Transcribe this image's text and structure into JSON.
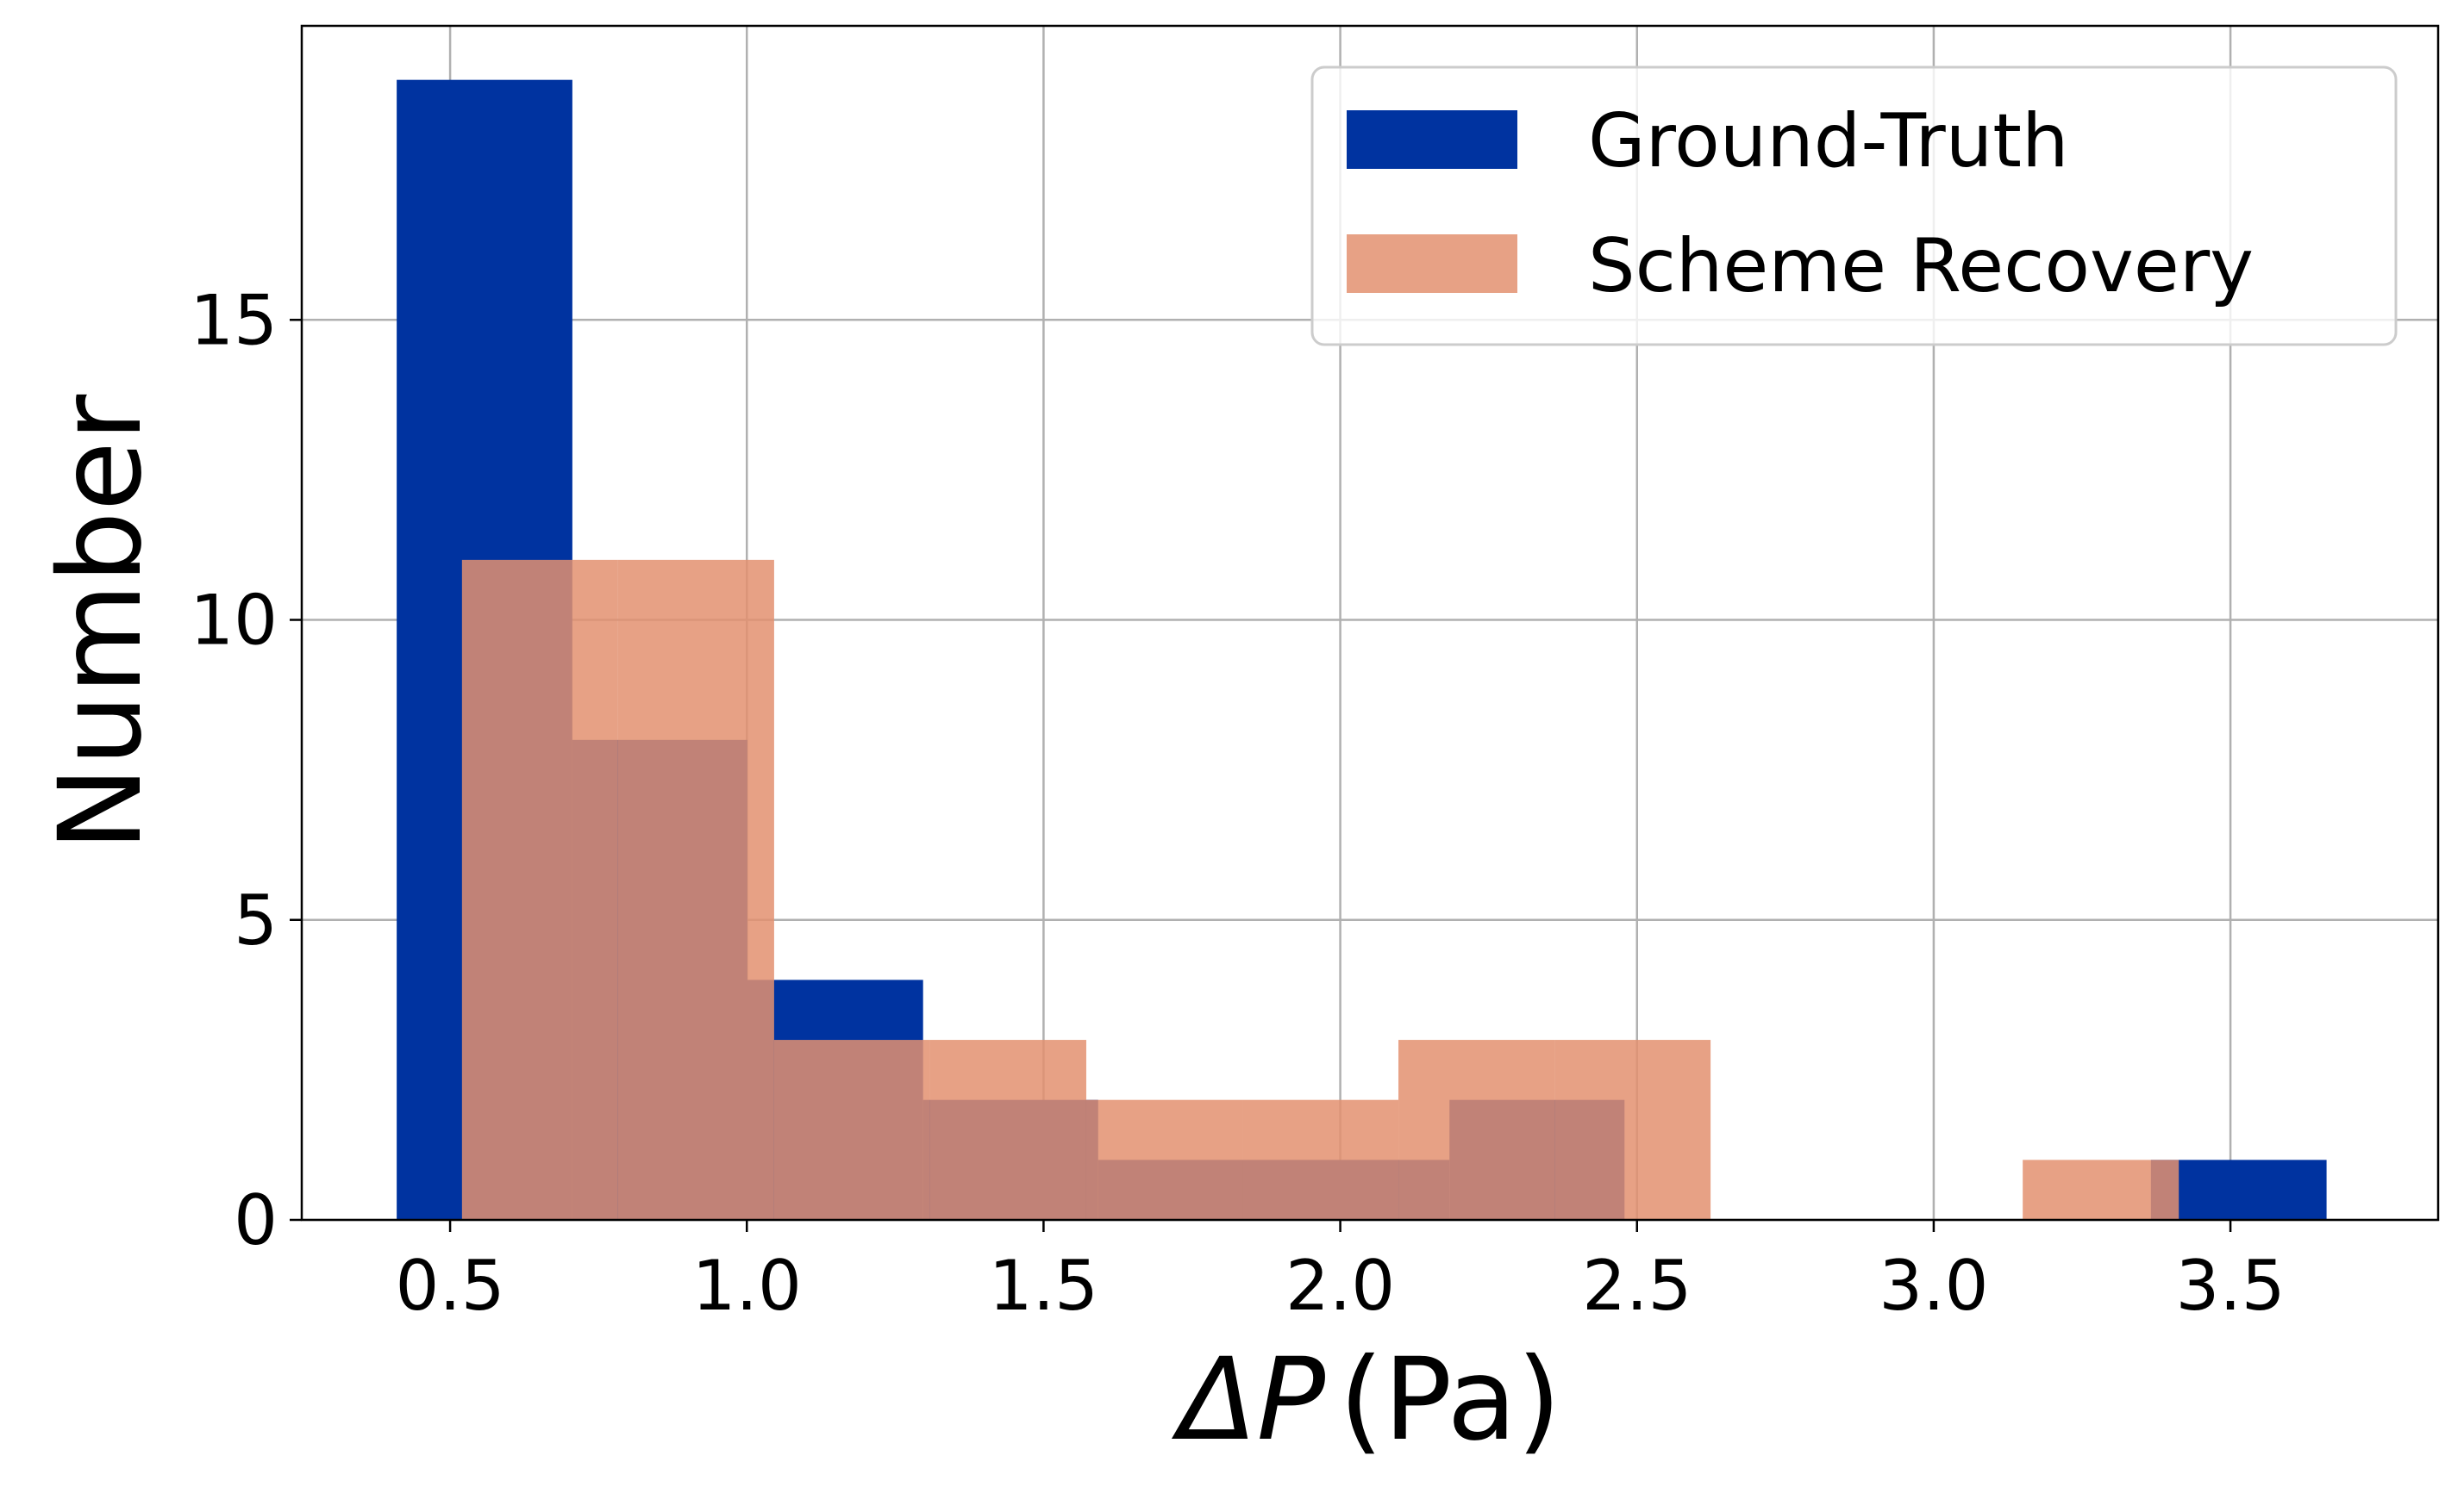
{
  "chart_data": {
    "type": "bar",
    "subtype": "overlapping-histogram",
    "title": "",
    "xlabel_symbol": "ΔP",
    "xlabel_unit": "(Pa)",
    "ylabel": "Number",
    "xlim": [
      0.25,
      3.85
    ],
    "ylim": [
      0,
      19.9
    ],
    "xticks": [
      0.5,
      1.0,
      1.5,
      2.0,
      2.5,
      3.0,
      3.5
    ],
    "xtick_labels": [
      "0.5",
      "1.0",
      "1.5",
      "2.0",
      "2.5",
      "3.0",
      "3.5"
    ],
    "yticks": [
      0,
      5,
      10,
      15
    ],
    "ytick_labels": [
      "0",
      "5",
      "10",
      "15"
    ],
    "grid": true,
    "legend_position": "top-right",
    "series": [
      {
        "name": "Ground-Truth",
        "color": "#0033a0",
        "opacity": 1.0,
        "bin_edges": [
          0.41,
          0.706,
          1.001,
          1.297,
          1.592,
          1.888,
          2.184,
          2.479,
          2.775,
          3.07,
          3.366,
          3.662
        ],
        "counts": [
          19,
          8,
          4,
          2,
          1,
          1,
          2,
          0,
          0,
          0,
          1
        ]
      },
      {
        "name": "Scheme Recovery",
        "color": "#e39070",
        "opacity": 0.85,
        "bin_edges": [
          0.52,
          0.783,
          1.046,
          1.309,
          1.572,
          1.835,
          2.098,
          2.361,
          2.624,
          2.887,
          3.15,
          3.413
        ],
        "counts": [
          11,
          11,
          3,
          3,
          2,
          2,
          3,
          3,
          0,
          0,
          1
        ]
      }
    ]
  }
}
